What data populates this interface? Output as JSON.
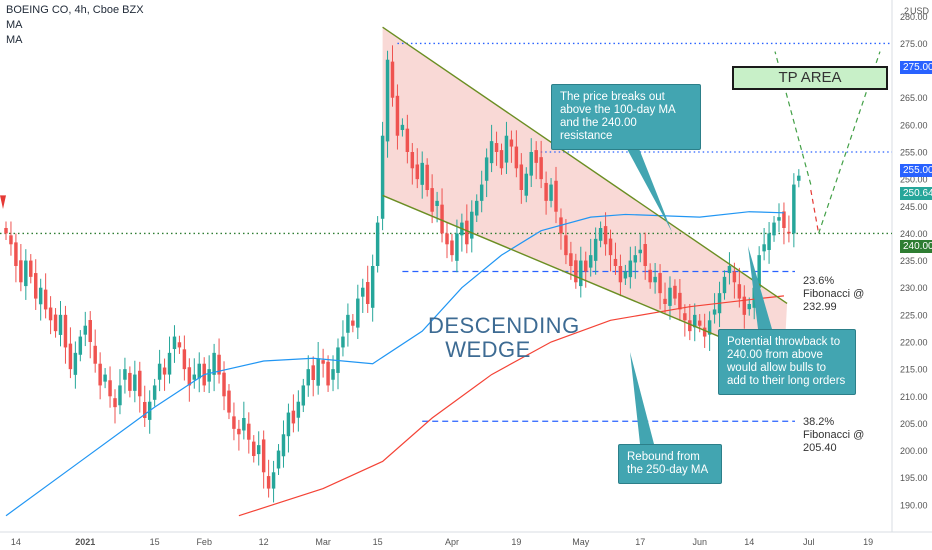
{
  "header": {
    "symbol_line": "BOEING CO, 4h, Cboe BZX",
    "ma1": "MA",
    "ma2": "MA",
    "currency": "USD"
  },
  "colors": {
    "up": "#26a69a",
    "down": "#ef5350",
    "ma100": "#2196f3",
    "ma250": "#f44336",
    "wedge_line": "#6b8e23",
    "wedge_fill": "#f8d0cc",
    "fib_line": "#2962ff",
    "resistance_dotted": "#2962ff",
    "support_dotted": "#2e7d32",
    "callout_bg": "#42a5b1",
    "tp_fill": "#c8f0c8"
  },
  "annotations": {
    "breakout": "The price breaks out above the 100-day MA and the 240.00 resistance",
    "throwback": "Potential throwback to 240.00 from above would allow bulls to add to their long orders",
    "rebound": "Rebound from the 250-day MA",
    "fib236": "23.6% Fibonacci @ 232.99",
    "fib382": "38.2% Fibonacci @ 205.40",
    "wedge_line1": "DESCENDING",
    "wedge_line2": "WEDGE",
    "tp_area": "TP AREA"
  },
  "price_labels": {
    "p275": "275.00",
    "p255": "255.00",
    "p250": "250.64",
    "p240": "240.00"
  },
  "chart_data": {
    "type": "candlestick",
    "title": "BOEING CO, 4h, Cboe BZX",
    "ylim": [
      185,
      283
    ],
    "y_ticks": [
      190,
      195,
      200,
      205,
      210,
      215,
      220,
      225,
      230,
      235,
      240,
      245,
      250,
      255,
      260,
      265,
      270,
      275,
      280
    ],
    "y_tick_labels": [
      "190.00",
      "195.00",
      "200.00",
      "205.00",
      "210.00",
      "215.00",
      "220.00",
      "225.00",
      "230.00",
      "235.00",
      "240.00",
      "245.00",
      "250.00",
      "255.00",
      "260.00",
      "265.00",
      "270.00",
      "275.00",
      "280.00"
    ],
    "top_tick_label": "2",
    "x_tick_labels": [
      "14",
      "2021",
      "15",
      "Feb",
      "12",
      "Mar",
      "15",
      "Apr",
      "19",
      "May",
      "17",
      "Jun",
      "14",
      "Jul",
      "19"
    ],
    "x_tick_bars": [
      2,
      16,
      30,
      40,
      52,
      64,
      75,
      90,
      103,
      116,
      128,
      140,
      150,
      162,
      174
    ],
    "bars_total": 178,
    "candles_close": [
      240,
      238,
      234,
      231,
      235,
      232,
      228,
      230,
      226,
      224,
      222,
      225,
      219,
      215,
      218,
      221,
      223,
      220,
      216,
      212,
      214,
      210,
      208,
      212,
      215,
      211,
      214,
      210,
      206,
      209,
      212,
      216,
      214,
      218,
      221,
      219,
      215,
      212,
      214,
      216,
      212,
      215,
      218,
      214,
      210,
      207,
      204,
      203,
      206,
      202,
      199,
      201,
      196,
      193,
      196,
      200,
      203,
      207,
      205,
      209,
      212,
      215,
      213,
      217,
      216,
      212,
      215,
      219,
      221,
      225,
      223,
      228,
      230,
      227,
      234,
      242,
      258,
      272,
      265,
      258,
      260,
      255,
      252,
      250,
      253,
      248,
      244,
      246,
      240,
      238,
      236,
      240,
      242,
      238,
      244,
      246,
      249,
      254,
      257,
      255,
      252,
      258,
      256,
      252,
      248,
      251,
      255,
      253,
      250,
      246,
      249,
      244,
      240,
      236,
      234,
      231,
      235,
      233,
      236,
      239,
      241,
      238,
      236,
      234,
      231,
      233,
      235,
      236,
      237,
      234,
      231,
      232,
      229,
      227,
      230,
      228,
      226,
      224,
      222,
      225,
      223,
      221,
      224,
      226,
      229,
      232,
      234,
      231,
      228,
      225,
      227,
      230,
      236,
      238,
      240,
      242,
      243,
      241,
      240,
      249,
      250.64
    ],
    "series": [
      {
        "name": "MA",
        "values": [
          [
            0,
            188
          ],
          [
            15,
            198
          ],
          [
            30,
            208
          ],
          [
            40,
            214
          ],
          [
            52,
            216.5
          ],
          [
            62,
            217
          ],
          [
            74,
            216
          ],
          [
            84,
            222
          ],
          [
            92,
            230
          ],
          [
            100,
            236
          ],
          [
            108,
            240.5
          ],
          [
            118,
            243
          ],
          [
            125,
            243.5
          ],
          [
            140,
            243
          ],
          [
            150,
            244
          ],
          [
            157,
            243.8
          ]
        ]
      },
      {
        "name": "MA",
        "values": [
          [
            47,
            188
          ],
          [
            64,
            193
          ],
          [
            76,
            198
          ],
          [
            86,
            206
          ],
          [
            98,
            214
          ],
          [
            110,
            220
          ],
          [
            122,
            224
          ],
          [
            138,
            226.5
          ],
          [
            152,
            228
          ],
          [
            157,
            228.5
          ]
        ]
      }
    ],
    "wedge": {
      "upper": [
        [
          76,
          278
        ],
        [
          154,
          226
        ]
      ],
      "lower": [
        [
          76,
          247
        ],
        [
          157,
          216
        ]
      ]
    },
    "levels": [
      {
        "label": "275.00",
        "value": 275
      },
      {
        "label": "255.00",
        "value": 255
      },
      {
        "label": "240.00",
        "value": 240
      },
      {
        "label": "23.6% Fibonacci",
        "value": 232.99
      },
      {
        "label": "38.2% Fibonacci",
        "value": 205.4
      }
    ],
    "tp_area": [
      271,
      276
    ]
  }
}
